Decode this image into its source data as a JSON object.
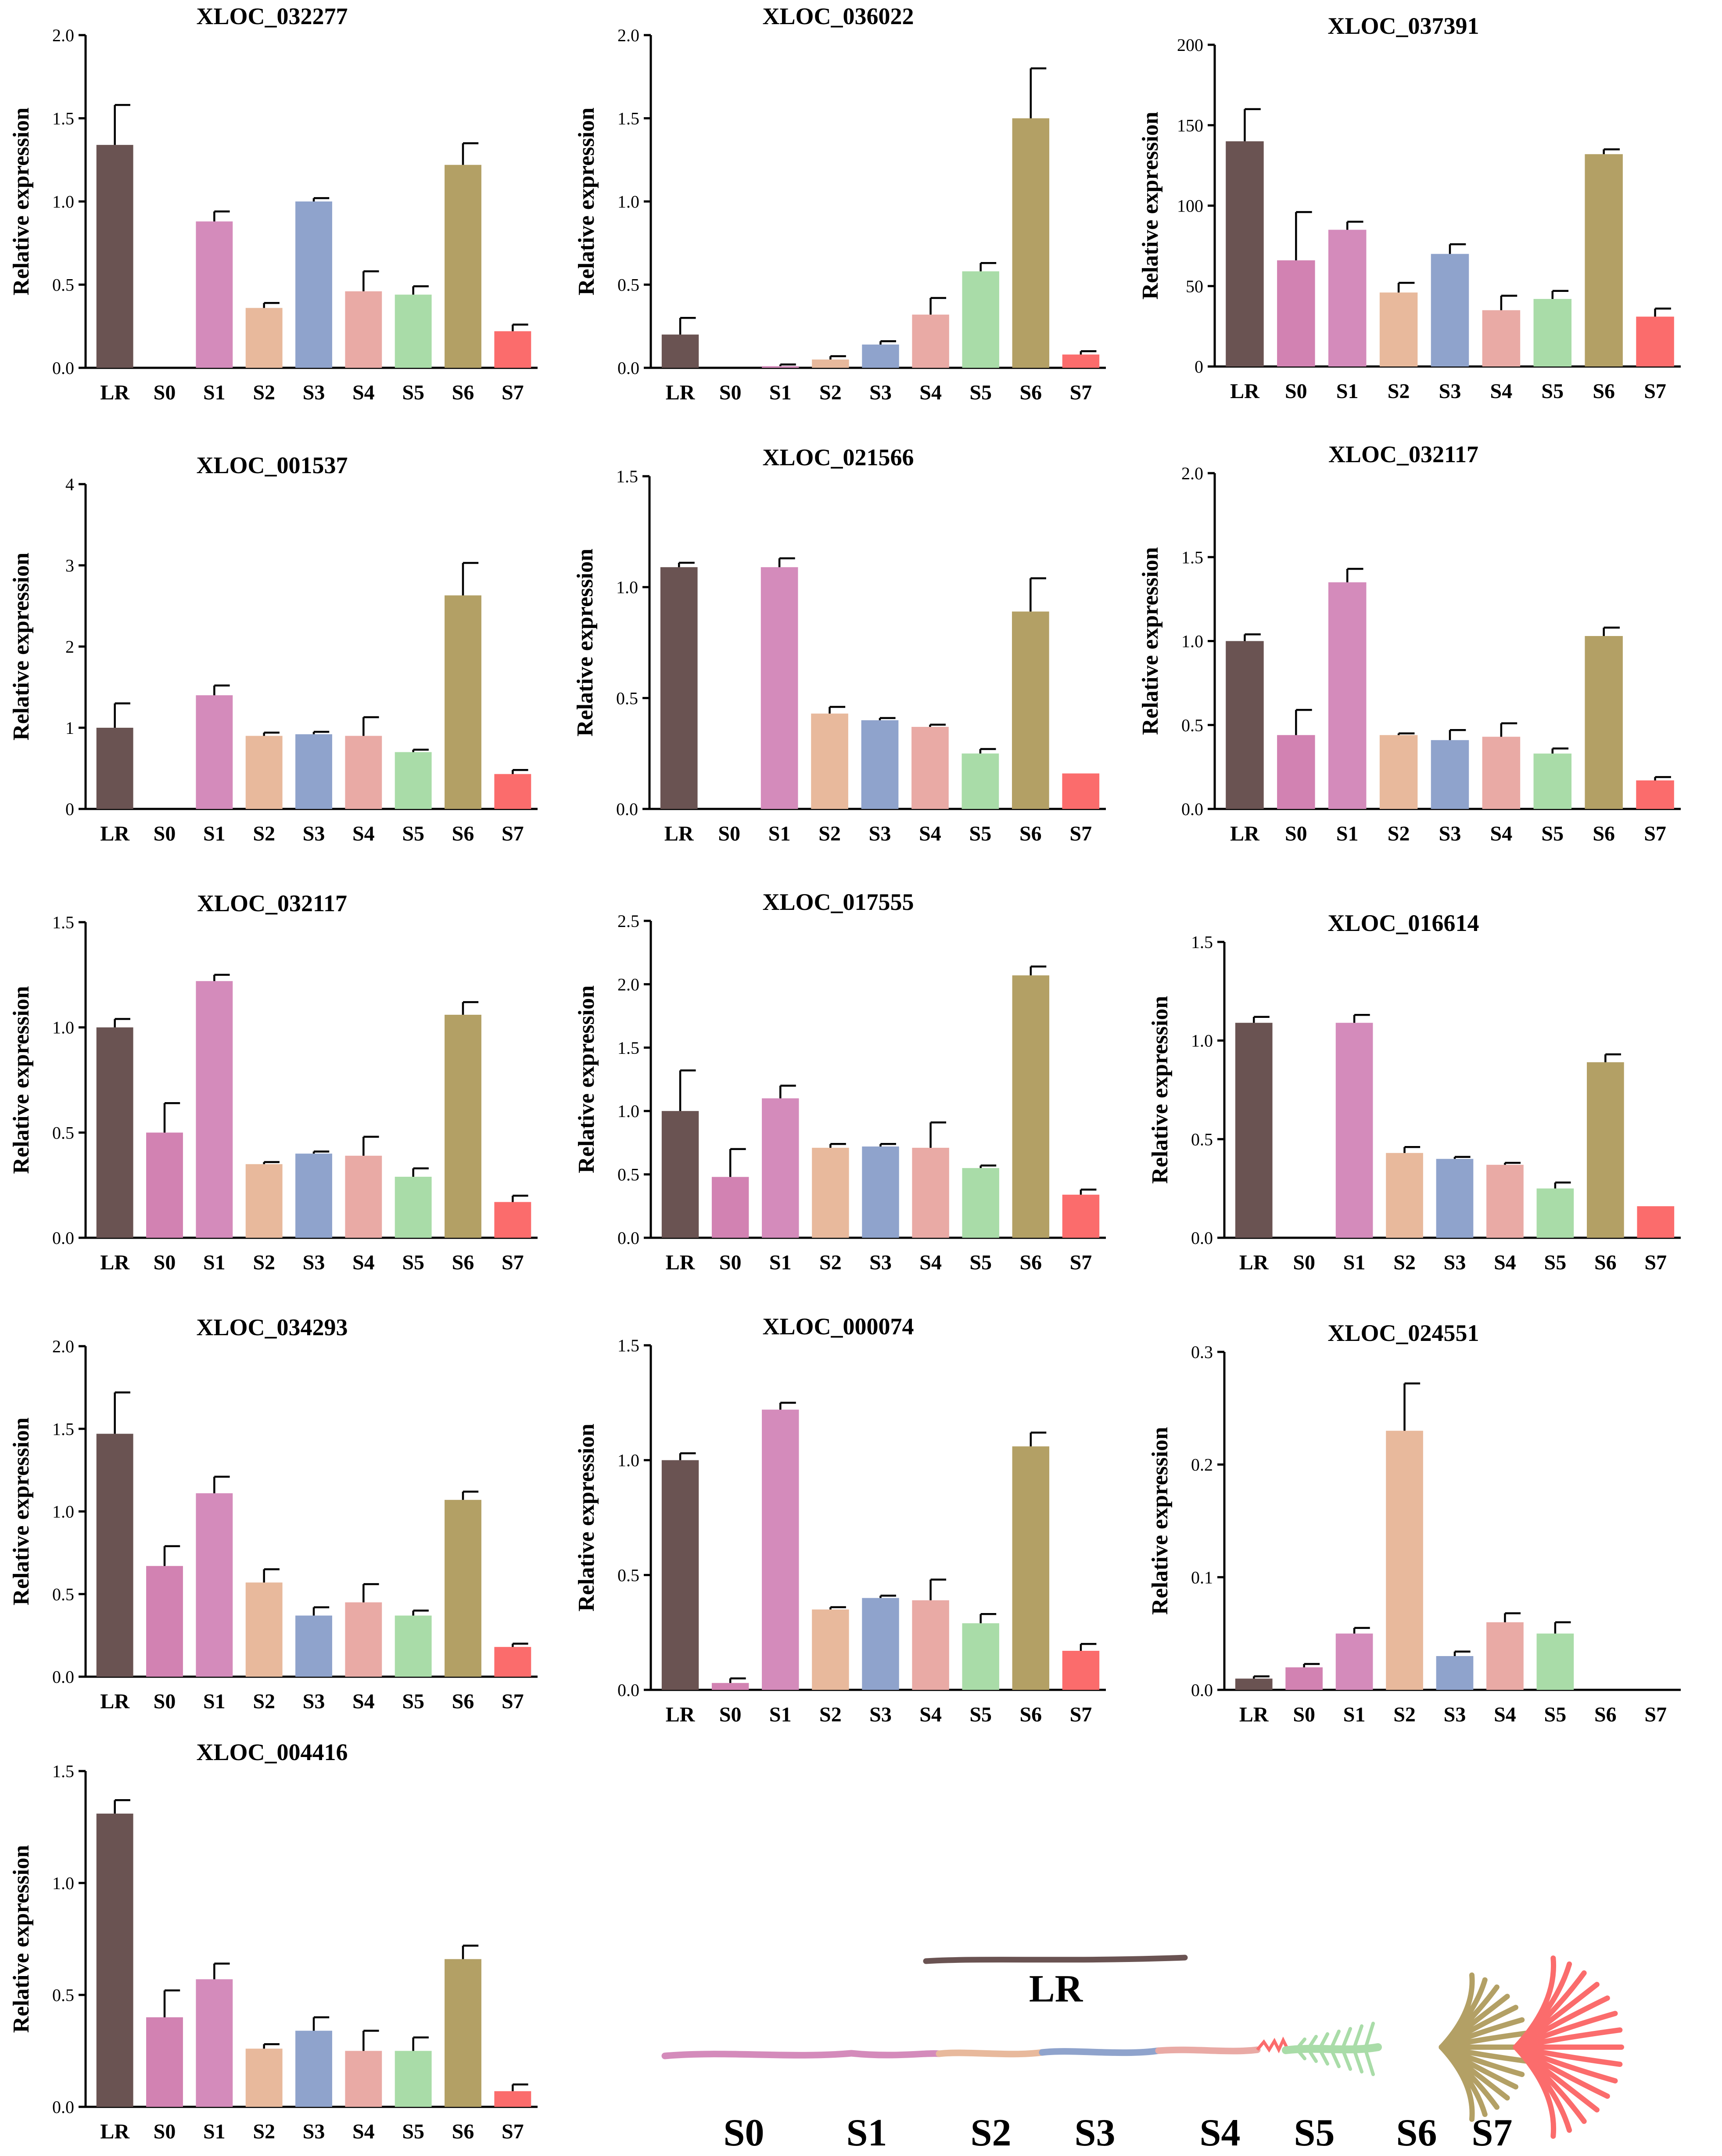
{
  "colors": {
    "LR": "#6a5352",
    "S0": "#d282b2",
    "S1": "#d48bbb",
    "S2": "#e8b99c",
    "S3": "#8fa3cc",
    "S4": "#e9aaa5",
    "S5": "#a9dca8",
    "S6": "#b3a065",
    "S7": "#fb6c6c"
  },
  "chart_data": [
    {
      "type": "bar",
      "title": "XLOC_032277",
      "ylabel": "Relative expression",
      "categories": [
        "LR",
        "S0",
        "S1",
        "S2",
        "S3",
        "S4",
        "S5",
        "S6",
        "S7"
      ],
      "values": [
        1.34,
        0,
        0.88,
        0.36,
        1.0,
        0.46,
        0.44,
        1.22,
        0.22
      ],
      "errors": [
        0.24,
        0,
        0.06,
        0.03,
        0.02,
        0.12,
        0.05,
        0.13,
        0.04
      ],
      "ylim": [
        0,
        2.0
      ],
      "yticks": [
        "0.0",
        "0.5",
        "1.0",
        "1.5",
        "2.0"
      ]
    },
    {
      "type": "bar",
      "title": "XLOC_036022",
      "ylabel": "Relative expression",
      "categories": [
        "LR",
        "S0",
        "S1",
        "S2",
        "S3",
        "S4",
        "S5",
        "S6",
        "S7"
      ],
      "values": [
        0.2,
        0,
        0.01,
        0.05,
        0.14,
        0.32,
        0.58,
        1.5,
        0.08
      ],
      "errors": [
        0.1,
        0,
        0.01,
        0.02,
        0.02,
        0.1,
        0.05,
        0.3,
        0.02
      ],
      "ylim": [
        0,
        2.0
      ],
      "yticks": [
        "0.0",
        "0.5",
        "1.0",
        "1.5",
        "2.0"
      ]
    },
    {
      "type": "bar",
      "title": "XLOC_037391",
      "ylabel": "Relative expression",
      "categories": [
        "LR",
        "S0",
        "S1",
        "S2",
        "S3",
        "S4",
        "S5",
        "S6",
        "S7"
      ],
      "values": [
        140,
        66,
        85,
        46,
        70,
        35,
        42,
        132,
        31
      ],
      "errors": [
        20,
        30,
        5,
        6,
        6,
        9,
        5,
        3,
        5
      ],
      "ylim": [
        0,
        200
      ],
      "yticks": [
        "0",
        "50",
        "100",
        "150",
        "200"
      ]
    },
    {
      "type": "bar",
      "title": "XLOC_001537",
      "ylabel": "Relative expression",
      "categories": [
        "LR",
        "S0",
        "S1",
        "S2",
        "S3",
        "S4",
        "S5",
        "S6",
        "S7"
      ],
      "values": [
        1.0,
        0,
        1.4,
        0.9,
        0.92,
        0.9,
        0.7,
        2.63,
        0.43
      ],
      "errors": [
        0.3,
        0,
        0.12,
        0.04,
        0.03,
        0.23,
        0.03,
        0.4,
        0.05
      ],
      "ylim": [
        0,
        4
      ],
      "yticks": [
        "0",
        "1",
        "2",
        "3",
        "4"
      ]
    },
    {
      "type": "bar",
      "title": "XLOC_021566",
      "ylabel": "Relative expression",
      "categories": [
        "LR",
        "S0",
        "S1",
        "S2",
        "S3",
        "S4",
        "S5",
        "S6",
        "S7"
      ],
      "values": [
        1.09,
        0,
        1.09,
        0.43,
        0.4,
        0.37,
        0.25,
        0.89,
        0.16
      ],
      "errors": [
        0.02,
        0,
        0.04,
        0.03,
        0.01,
        0.01,
        0.02,
        0.15,
        0
      ],
      "ylim": [
        0,
        1.5
      ],
      "yticks": [
        "0.0",
        "0.5",
        "1.0",
        "1.5"
      ]
    },
    {
      "type": "bar",
      "title": "XLOC_032117",
      "ylabel": "Relative expression",
      "categories": [
        "LR",
        "S0",
        "S1",
        "S2",
        "S3",
        "S4",
        "S5",
        "S6",
        "S7"
      ],
      "values": [
        1.0,
        0.44,
        1.35,
        0.44,
        0.41,
        0.43,
        0.33,
        1.03,
        0.17
      ],
      "errors": [
        0.04,
        0.15,
        0.08,
        0.01,
        0.06,
        0.08,
        0.03,
        0.05,
        0.02
      ],
      "ylim": [
        0,
        2.0
      ],
      "yticks": [
        "0.0",
        "0.5",
        "1.0",
        "1.5",
        "2.0"
      ]
    },
    {
      "type": "bar",
      "title": "XLOC_032117",
      "ylabel": "Relative expression",
      "categories": [
        "LR",
        "S0",
        "S1",
        "S2",
        "S3",
        "S4",
        "S5",
        "S6",
        "S7"
      ],
      "values": [
        1.0,
        0.5,
        1.22,
        0.35,
        0.4,
        0.39,
        0.29,
        1.06,
        0.17
      ],
      "errors": [
        0.04,
        0.14,
        0.03,
        0.01,
        0.01,
        0.09,
        0.04,
        0.06,
        0.03
      ],
      "ylim": [
        0,
        1.5
      ],
      "yticks": [
        "0.0",
        "0.5",
        "1.0",
        "1.5"
      ]
    },
    {
      "type": "bar",
      "title": "XLOC_017555",
      "ylabel": "Relative expression",
      "categories": [
        "LR",
        "S0",
        "S1",
        "S2",
        "S3",
        "S4",
        "S5",
        "S6",
        "S7"
      ],
      "values": [
        1.0,
        0.48,
        1.1,
        0.71,
        0.72,
        0.71,
        0.55,
        2.07,
        0.34
      ],
      "errors": [
        0.32,
        0.22,
        0.1,
        0.03,
        0.02,
        0.2,
        0.02,
        0.07,
        0.04
      ],
      "ylim": [
        0,
        2.5
      ],
      "yticks": [
        "0.0",
        "0.5",
        "1.0",
        "1.5",
        "2.0",
        "2.5"
      ]
    },
    {
      "type": "bar",
      "title": "XLOC_016614",
      "ylabel": "Relative expression",
      "categories": [
        "LR",
        "S0",
        "S1",
        "S2",
        "S3",
        "S4",
        "S5",
        "S6",
        "S7"
      ],
      "values": [
        1.09,
        0,
        1.09,
        0.43,
        0.4,
        0.37,
        0.25,
        0.89,
        0.16
      ],
      "errors": [
        0.03,
        0,
        0.04,
        0.03,
        0.01,
        0.01,
        0.03,
        0.04,
        0
      ],
      "ylim": [
        0,
        1.5
      ],
      "yticks": [
        "0.0",
        "0.5",
        "1.0",
        "1.5"
      ]
    },
    {
      "type": "bar",
      "title": "XLOC_034293",
      "ylabel": "Relative expression",
      "categories": [
        "LR",
        "S0",
        "S1",
        "S2",
        "S3",
        "S4",
        "S5",
        "S6",
        "S7"
      ],
      "values": [
        1.47,
        0.67,
        1.11,
        0.57,
        0.37,
        0.45,
        0.37,
        1.07,
        0.18
      ],
      "errors": [
        0.25,
        0.12,
        0.1,
        0.08,
        0.05,
        0.11,
        0.03,
        0.05,
        0.02
      ],
      "ylim": [
        0,
        2.0
      ],
      "yticks": [
        "0.0",
        "0.5",
        "1.0",
        "1.5",
        "2.0"
      ]
    },
    {
      "type": "bar",
      "title": "XLOC_000074",
      "ylabel": "Relative expression",
      "categories": [
        "LR",
        "S0",
        "S1",
        "S2",
        "S3",
        "S4",
        "S5",
        "S6",
        "S7"
      ],
      "values": [
        1.0,
        0.03,
        1.22,
        0.35,
        0.4,
        0.39,
        0.29,
        1.06,
        0.17
      ],
      "errors": [
        0.03,
        0.02,
        0.03,
        0.01,
        0.01,
        0.09,
        0.04,
        0.06,
        0.03
      ],
      "ylim": [
        0,
        1.5
      ],
      "yticks": [
        "0.0",
        "0.5",
        "1.0",
        "1.5"
      ]
    },
    {
      "type": "bar",
      "title": "XLOC_024551",
      "ylabel": "Relative expression",
      "categories": [
        "LR",
        "S0",
        "S1",
        "S2",
        "S3",
        "S4",
        "S5",
        "S6",
        "S7"
      ],
      "values": [
        0.01,
        0.02,
        0.05,
        0.23,
        0.03,
        0.06,
        0.05,
        0,
        0
      ],
      "errors": [
        0.002,
        0.003,
        0.005,
        0.042,
        0.004,
        0.008,
        0.01,
        0,
        0
      ],
      "ylim": [
        0,
        0.3
      ],
      "yticks": [
        "0.0",
        "0.1",
        "0.2",
        "0.3"
      ]
    },
    {
      "type": "bar",
      "title": "XLOC_004416",
      "ylabel": "Relative expression",
      "categories": [
        "LR",
        "S0",
        "S1",
        "S2",
        "S3",
        "S4",
        "S5",
        "S6",
        "S7"
      ],
      "values": [
        1.31,
        0.4,
        0.57,
        0.26,
        0.34,
        0.25,
        0.25,
        0.66,
        0.07
      ],
      "errors": [
        0.06,
        0.12,
        0.07,
        0.02,
        0.06,
        0.09,
        0.06,
        0.06,
        0.03
      ],
      "ylim": [
        0,
        1.5
      ],
      "yticks": [
        "0.0",
        "0.5",
        "1.0",
        "1.5"
      ]
    }
  ],
  "legend": {
    "LR": "LR",
    "stages": [
      "S0",
      "S1",
      "S2",
      "S3",
      "S4",
      "S5",
      "S6",
      "S7"
    ]
  }
}
